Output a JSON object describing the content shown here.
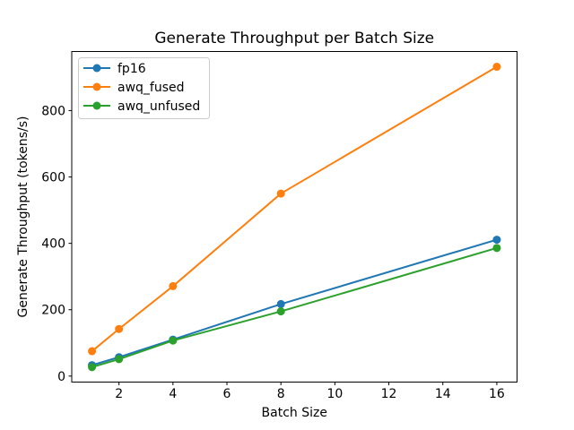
{
  "chart_data": {
    "type": "line",
    "title": "Generate Throughput per Batch Size",
    "xlabel": "Batch Size",
    "ylabel": "Generate Throughput (tokens/s)",
    "x": [
      1,
      2,
      4,
      8,
      16
    ],
    "series": [
      {
        "name": "fp16",
        "color": "#1f77b4",
        "values": [
          33,
          57,
          110,
          217,
          411
        ]
      },
      {
        "name": "awq_fused",
        "color": "#ff7f0e",
        "values": [
          75,
          142,
          271,
          550,
          932
        ]
      },
      {
        "name": "awq_unfused",
        "color": "#2ca02c",
        "values": [
          27,
          51,
          107,
          195,
          386
        ]
      }
    ],
    "xlim": [
      0.25,
      16.75
    ],
    "ylim": [
      -18,
      978
    ],
    "xticks": [
      2,
      4,
      6,
      8,
      10,
      12,
      14,
      16
    ],
    "yticks": [
      0,
      200,
      400,
      600,
      800
    ],
    "grid": false,
    "legend_position": "upper left",
    "marker": "circle",
    "background": "#ffffff",
    "plot_background": "#ffffff",
    "spine_color": "#000000",
    "legend_border_color": "#cccccc"
  }
}
